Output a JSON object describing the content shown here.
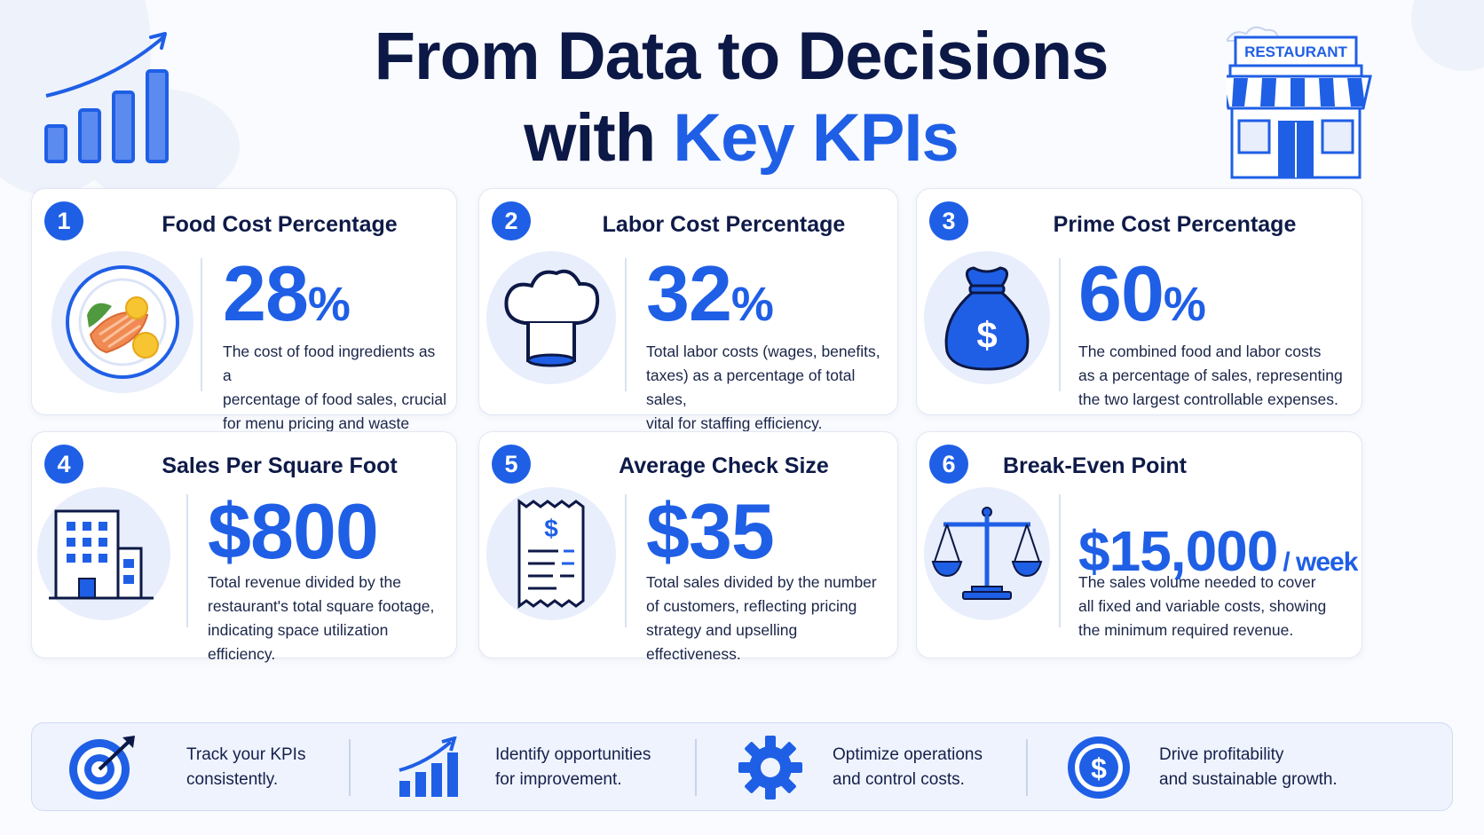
{
  "title": {
    "line1": "From Data to Decisions",
    "line2_plain": "with ",
    "line2_accent": "Key KPIs"
  },
  "hero": {
    "sign": "RESTAURANT"
  },
  "colors": {
    "accent": "#1f5fe6",
    "navy": "#0c1846",
    "soft": "#e8eefb"
  },
  "kpis": [
    {
      "num": "1",
      "title": "Food Cost Percentage",
      "value": "28",
      "unit": "%",
      "desc": [
        "The cost of food ingredients as a",
        "percentage of food sales, crucial",
        "for menu pricing and waste control."
      ],
      "icon": "food-plate-icon"
    },
    {
      "num": "2",
      "title": "Labor Cost Percentage",
      "value": "32",
      "unit": "%",
      "desc": [
        "Total labor costs (wages, benefits,",
        "taxes) as a percentage of total sales,",
        "vital for staffing efficiency."
      ],
      "icon": "chef-hat-icon"
    },
    {
      "num": "3",
      "title": "Prime Cost Percentage",
      "value": "60",
      "unit": "%",
      "desc": [
        "The combined food and labor costs",
        "as a percentage of sales, representing",
        "the two largest controllable expenses."
      ],
      "icon": "money-bag-icon"
    },
    {
      "num": "4",
      "title": "Sales Per Square Foot",
      "value": "$800",
      "unit": "",
      "desc": [
        "Total revenue divided by the",
        "restaurant's total square footage,",
        "indicating space utilization efficiency."
      ],
      "icon": "building-icon"
    },
    {
      "num": "5",
      "title": "Average Check Size",
      "value": "$35",
      "unit": "",
      "desc": [
        "Total sales divided by the number",
        "of customers, reflecting pricing",
        "strategy and upselling effectiveness."
      ],
      "icon": "receipt-icon"
    },
    {
      "num": "6",
      "title": "Break-Even Point",
      "value": "$15,000",
      "unit": "/ week",
      "desc": [
        "The sales volume needed to cover",
        "all fixed and variable costs, showing",
        "the minimum required revenue."
      ],
      "icon": "scale-icon"
    }
  ],
  "footer": [
    {
      "line1": "Track your KPIs",
      "line2": "consistently.",
      "icon": "target-icon"
    },
    {
      "line1": "Identify opportunities",
      "line2": "for improvement.",
      "icon": "growth-chart-icon"
    },
    {
      "line1": "Optimize operations",
      "line2": "and control costs.",
      "icon": "gear-icon"
    },
    {
      "line1": "Drive profitability",
      "line2": "and sustainable growth.",
      "icon": "dollar-coin-icon"
    }
  ]
}
